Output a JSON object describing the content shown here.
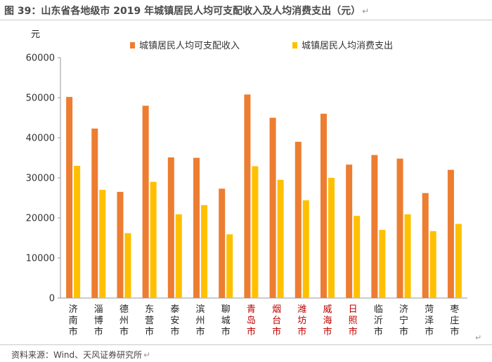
{
  "title": "图 39：山东省各地级市 2019 年城镇居民人均可支配收入及人均消费支出（元）",
  "paragraph_mark": "↵",
  "source": "资料来源：Wind、天风证券研究所",
  "colors": {
    "income": "#ED7D31",
    "expense": "#FFC000",
    "highlight_label": "#C00000",
    "normal_label": "#222222"
  },
  "chart_data": {
    "type": "bar",
    "ylabel": "元",
    "ylim": [
      0,
      60000
    ],
    "yticks": [
      0,
      10000,
      20000,
      30000,
      40000,
      50000,
      60000
    ],
    "grid": false,
    "legend_position": "top",
    "categories": [
      "济南市",
      "淄博市",
      "德州市",
      "东营市",
      "泰安市",
      "滨州市",
      "聊城市",
      "青岛市",
      "烟台市",
      "潍坊市",
      "威海市",
      "日照市",
      "临沂市",
      "济宁市",
      "菏泽市",
      "枣庄市"
    ],
    "highlighted_categories": [
      "青岛市",
      "烟台市",
      "潍坊市",
      "威海市",
      "日照市"
    ],
    "series": [
      {
        "name": "城镇居民人均可支配收入",
        "values": [
          50200,
          42300,
          26500,
          48000,
          35100,
          35000,
          27300,
          50800,
          45000,
          39000,
          46000,
          33300,
          35700,
          34800,
          26200,
          32000
        ]
      },
      {
        "name": "城镇居民人均消费支出",
        "values": [
          33000,
          27000,
          16200,
          29000,
          20900,
          23200,
          15900,
          32900,
          29500,
          24400,
          30000,
          20500,
          17000,
          20900,
          16700,
          18500
        ]
      }
    ]
  }
}
